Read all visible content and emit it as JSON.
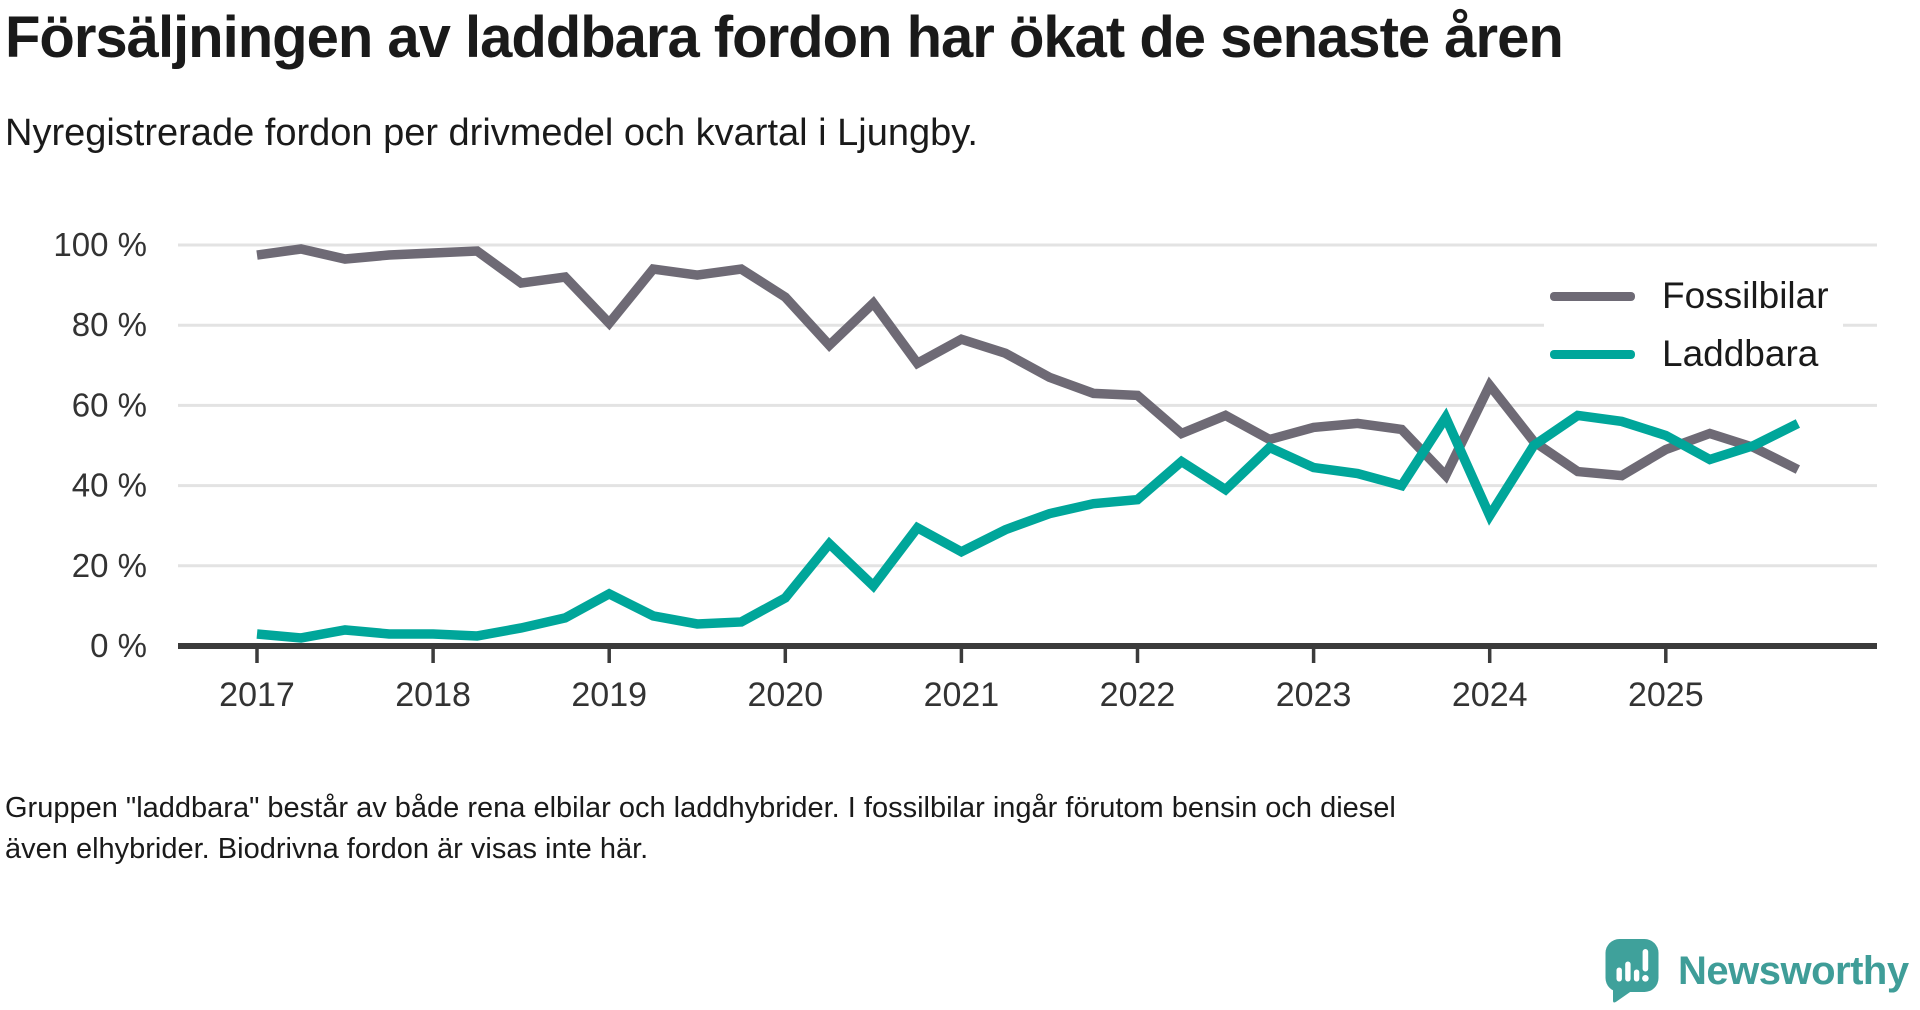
{
  "title": "Försäljningen av laddbara fordon har ökat de senaste åren",
  "subtitle": "Nyregistrerade fordon per drivmedel och kvartal i Ljungby.",
  "footer": "Gruppen \"laddbara\" består av både rena elbilar och laddhybrider. I fossilbilar ingår förutom bensin och diesel även elhybrider. Biodrivna fordon är visas inte här.",
  "branding": {
    "logo_text": "Newsworthy",
    "logo_icon": "newsworthy-speech-bubble-bar-chart-icon",
    "logo_color": "#3f9d98"
  },
  "colors": {
    "background": "#ffffff",
    "text": "#1a1a1a",
    "axis": "#3b3b3b",
    "grid": "#e3e3e3",
    "fossilbilar": "#6e6a75",
    "laddbara": "#00a69a"
  },
  "chart_data": {
    "type": "line",
    "title": "Försäljningen av laddbara fordon har ökat de senaste åren",
    "subtitle": "Nyregistrerade fordon per drivmedel och kvartal i Ljungby.",
    "xlabel": "",
    "ylabel": "",
    "ylim": [
      0,
      100
    ],
    "grid": "horizontal",
    "legend_position": "top-right",
    "y_ticks": [
      0,
      20,
      40,
      60,
      80,
      100
    ],
    "y_tick_labels": [
      "0 %",
      "20 %",
      "40 %",
      "60 %",
      "80 %",
      "100 %"
    ],
    "x_tick_labels": [
      "2017",
      "2018",
      "2019",
      "2020",
      "2021",
      "2022",
      "2023",
      "2024",
      "2025"
    ],
    "categories": [
      "2017 Q1",
      "2017 Q2",
      "2017 Q3",
      "2017 Q4",
      "2018 Q1",
      "2018 Q2",
      "2018 Q3",
      "2018 Q4",
      "2019 Q1",
      "2019 Q2",
      "2019 Q3",
      "2019 Q4",
      "2020 Q1",
      "2020 Q2",
      "2020 Q3",
      "2020 Q4",
      "2021 Q1",
      "2021 Q2",
      "2021 Q3",
      "2021 Q4",
      "2022 Q1",
      "2022 Q2",
      "2022 Q3",
      "2022 Q4",
      "2023 Q1",
      "2023 Q2",
      "2023 Q3",
      "2023 Q4",
      "2024 Q1",
      "2024 Q2",
      "2024 Q3",
      "2024 Q4",
      "2025 Q1",
      "2025 Q2",
      "2025 Q3",
      "2025 Q4"
    ],
    "series": [
      {
        "name": "Fossilbilar",
        "color": "#6e6a75",
        "values": [
          97.5,
          99,
          96.5,
          97.5,
          98,
          98.5,
          90.5,
          92,
          80.5,
          94,
          92.5,
          94,
          87,
          75,
          85.5,
          70.5,
          76.5,
          73,
          67,
          63,
          62.5,
          53,
          57.5,
          51.5,
          54.5,
          55.5,
          54,
          42.5,
          65,
          51,
          43.5,
          42.5,
          49,
          53,
          49.5,
          44
        ]
      },
      {
        "name": "Laddbara",
        "color": "#00a69a",
        "values": [
          3,
          2,
          4,
          3,
          3,
          2.5,
          4.5,
          7,
          13,
          7.5,
          5.5,
          6,
          12,
          25.5,
          15,
          29.5,
          23.5,
          29,
          33,
          35.5,
          36.5,
          46,
          39,
          49.5,
          44.5,
          43,
          40,
          57,
          32.5,
          50,
          57.5,
          56,
          52.5,
          46.5,
          50,
          55.5
        ]
      }
    ]
  }
}
